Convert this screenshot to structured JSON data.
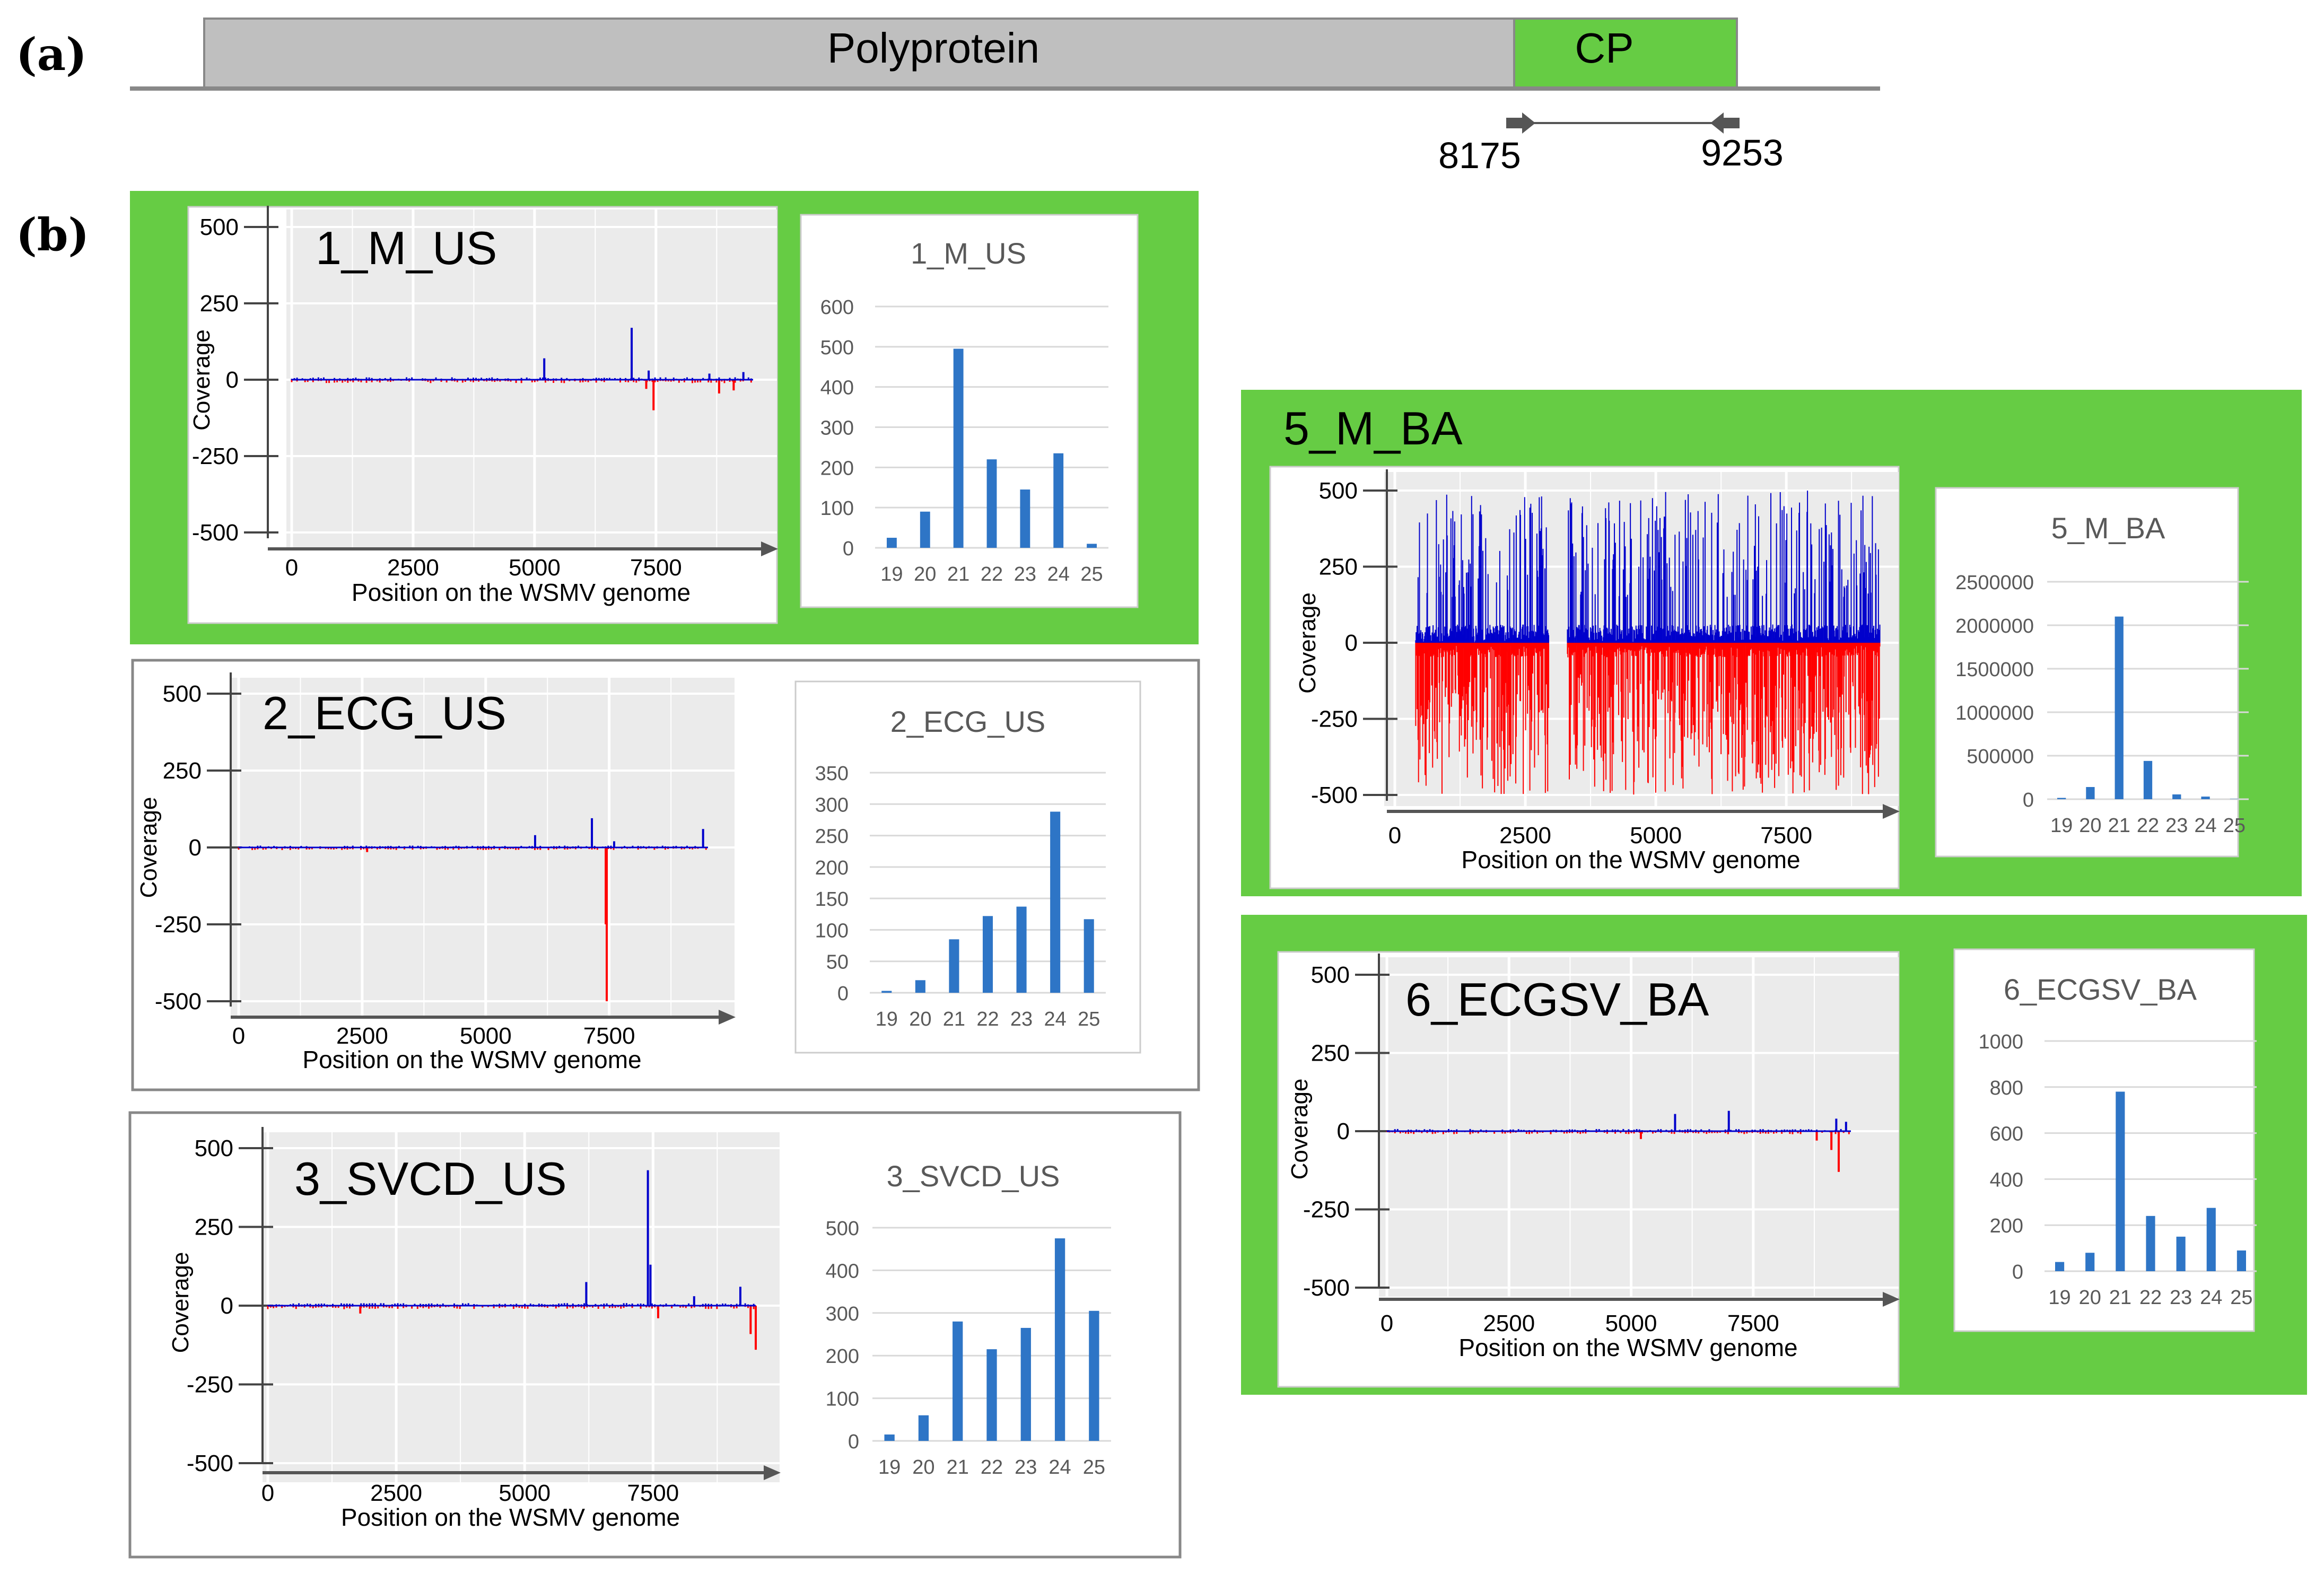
{
  "panel_labels": {
    "a": "(a)",
    "b": "(b)"
  },
  "genome_map": {
    "polyprotein_label": "Polyprotein",
    "cp_label": "CP",
    "primer_start": "8175",
    "primer_end": "9253",
    "colors": {
      "polyprotein": "#bfbfbf",
      "cp": "#66cc44"
    }
  },
  "colors": {
    "highlight": "#66cc44",
    "plus_strand": "#0000cc",
    "minus_strand": "#ff0000",
    "bar": "#2e75c6",
    "plot_bg": "#ebebeb"
  },
  "chart_data": [
    {
      "id": "1_M_US",
      "type": "line",
      "highlight": true,
      "title": "1_M_US",
      "xlabel": "Position on the WSMV genome",
      "ylabel": "Coverage",
      "xticks": [
        "0",
        "2500",
        "5000",
        "7500"
      ],
      "yticks": [
        "500",
        "250",
        "0",
        "-250",
        "-500"
      ],
      "xlim": [
        0,
        9500
      ],
      "ylim": [
        -500,
        500
      ],
      "plus_spikes": [
        [
          5200,
          70
        ],
        [
          7000,
          170
        ],
        [
          7350,
          30
        ],
        [
          8600,
          20
        ],
        [
          9300,
          25
        ]
      ],
      "minus_spikes": [
        [
          7300,
          -30
        ],
        [
          7450,
          -100
        ],
        [
          8800,
          -45
        ],
        [
          9100,
          -35
        ]
      ],
      "noise": 8
    },
    {
      "id": "2_ECG_US",
      "type": "line",
      "highlight": false,
      "title": "2_ECG_US",
      "xlabel": "Position on the WSMV genome",
      "ylabel": "Coverage",
      "xticks": [
        "0",
        "2500",
        "5000",
        "7500"
      ],
      "yticks": [
        "500",
        "250",
        "0",
        "-250",
        "-500"
      ],
      "xlim": [
        0,
        9500
      ],
      "ylim": [
        -500,
        500
      ],
      "plus_spikes": [
        [
          6000,
          40
        ],
        [
          7150,
          95
        ],
        [
          7600,
          20
        ],
        [
          9400,
          60
        ]
      ],
      "minus_spikes": [
        [
          7450,
          -500
        ],
        [
          7430,
          -250
        ],
        [
          2600,
          -15
        ]
      ],
      "noise": 6
    },
    {
      "id": "3_SVCD_US",
      "type": "line",
      "highlight": false,
      "title": "3_SVCD_US",
      "xlabel": "Position on the WSMV genome",
      "ylabel": "Coverage",
      "xticks": [
        "0",
        "2500",
        "5000",
        "7500"
      ],
      "yticks": [
        "500",
        "250",
        "0",
        "-250",
        "-500"
      ],
      "xlim": [
        0,
        9500
      ],
      "ylim": [
        -500,
        500
      ],
      "plus_spikes": [
        [
          6200,
          75
        ],
        [
          7400,
          430
        ],
        [
          7450,
          130
        ],
        [
          8300,
          30
        ],
        [
          9200,
          60
        ]
      ],
      "minus_spikes": [
        [
          7600,
          -40
        ],
        [
          9500,
          -140
        ],
        [
          9400,
          -90
        ],
        [
          1800,
          -25
        ]
      ],
      "noise": 8
    },
    {
      "id": "5_M_BA",
      "type": "line",
      "highlight": true,
      "title": "5_M_BA",
      "xlabel": "Position on the WSMV genome",
      "ylabel": "Coverage",
      "xticks": [
        "0",
        "2500",
        "5000",
        "7500"
      ],
      "yticks": [
        "500",
        "250",
        "0",
        "-250",
        "-500"
      ],
      "xlim": [
        0,
        9500
      ],
      "ylim": [
        -500,
        500
      ],
      "dense": true,
      "dense_range": [
        400,
        9300
      ],
      "gap_range": [
        2950,
        3300
      ],
      "plus_spikes": [],
      "minus_spikes": [],
      "noise": 0
    },
    {
      "id": "6_ECGSV_BA",
      "type": "line",
      "highlight": true,
      "title": "6_ECGSV_BA",
      "xlabel": "Position on the WSMV genome",
      "ylabel": "Coverage",
      "xticks": [
        "0",
        "2500",
        "5000",
        "7500"
      ],
      "yticks": [
        "500",
        "250",
        "0",
        "-250",
        "-500"
      ],
      "xlim": [
        0,
        9500
      ],
      "ylim": [
        -500,
        500
      ],
      "plus_spikes": [
        [
          5900,
          55
        ],
        [
          7000,
          65
        ],
        [
          9200,
          40
        ],
        [
          9400,
          30
        ]
      ],
      "minus_spikes": [
        [
          9100,
          -60
        ],
        [
          9250,
          -130
        ],
        [
          8800,
          -30
        ],
        [
          5200,
          -25
        ]
      ],
      "noise": 7
    },
    {
      "id": "1_M_US_len",
      "type": "bar",
      "title": "1_M_US",
      "categories": [
        "19",
        "20",
        "21",
        "22",
        "23",
        "24",
        "25"
      ],
      "values": [
        25,
        90,
        495,
        220,
        145,
        235,
        10
      ],
      "yticks": [
        "0",
        "100",
        "200",
        "300",
        "400",
        "500",
        "600"
      ],
      "ylim": [
        0,
        600
      ]
    },
    {
      "id": "2_ECG_US_len",
      "type": "bar",
      "title": "2_ECG_US",
      "categories": [
        "19",
        "20",
        "21",
        "22",
        "23",
        "24",
        "25"
      ],
      "values": [
        3,
        20,
        85,
        122,
        137,
        288,
        117
      ],
      "yticks": [
        "0",
        "50",
        "100",
        "150",
        "200",
        "250",
        "300",
        "350"
      ],
      "ylim": [
        0,
        350
      ]
    },
    {
      "id": "3_SVCD_US_len",
      "type": "bar",
      "title": "3_SVCD_US",
      "categories": [
        "19",
        "20",
        "21",
        "22",
        "23",
        "24",
        "25"
      ],
      "values": [
        15,
        60,
        280,
        215,
        265,
        475,
        305
      ],
      "yticks": [
        "0",
        "100",
        "200",
        "300",
        "400",
        "500"
      ],
      "ylim": [
        0,
        500
      ]
    },
    {
      "id": "5_M_BA_len",
      "type": "bar",
      "title": "5_M_BA",
      "categories": [
        "19",
        "20",
        "21",
        "22",
        "23",
        "24",
        "25"
      ],
      "values": [
        15000,
        140000,
        2100000,
        440000,
        55000,
        30000,
        3000
      ],
      "yticks": [
        "0",
        "500000",
        "1000000",
        "1500000",
        "2000000",
        "2500000"
      ],
      "ylim": [
        0,
        2500000
      ]
    },
    {
      "id": "6_ECGSV_BA_len",
      "type": "bar",
      "title": "6_ECGSV_BA",
      "categories": [
        "19",
        "20",
        "21",
        "22",
        "23",
        "24",
        "25"
      ],
      "values": [
        40,
        80,
        780,
        240,
        150,
        275,
        90
      ],
      "yticks": [
        "0",
        "200",
        "400",
        "600",
        "800",
        "1000"
      ],
      "ylim": [
        0,
        1000
      ]
    }
  ]
}
